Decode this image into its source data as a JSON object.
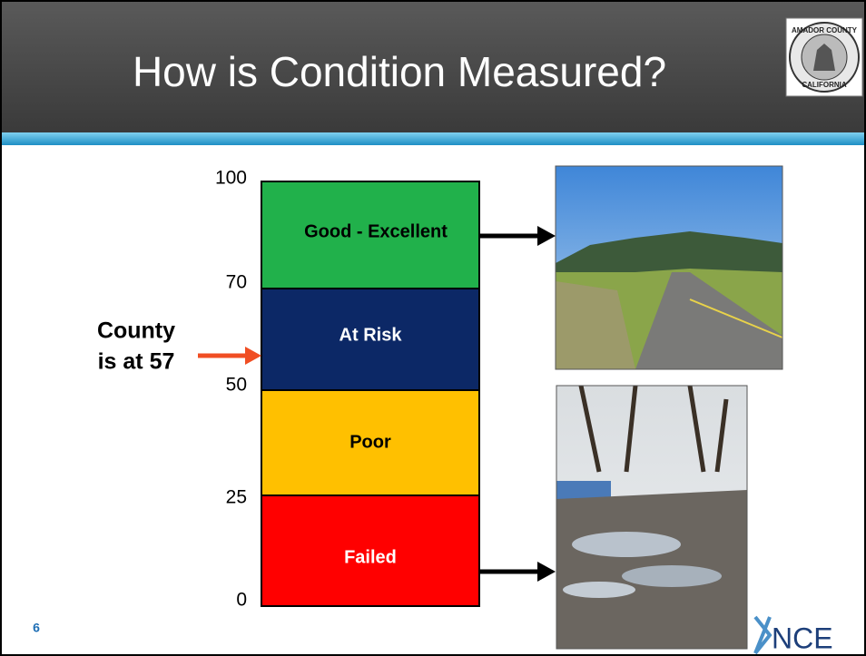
{
  "header": {
    "title": "How is Condition Measured?",
    "seal_top": "AMADOR COUNTY",
    "seal_bottom": "CALIFORNIA"
  },
  "scale": {
    "ticks": [
      100,
      70,
      50,
      25,
      0
    ],
    "bands": [
      "Good - Excellent",
      "At Risk",
      "Poor",
      "Failed"
    ]
  },
  "callout": {
    "line1": "County",
    "line2": "is at 57"
  },
  "footer": {
    "slide_number": "6",
    "logo": "NCE"
  }
}
